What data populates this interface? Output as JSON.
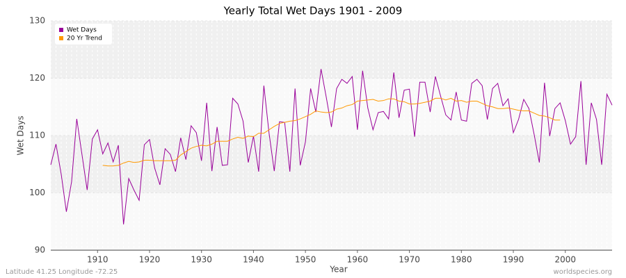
{
  "chart_data": {
    "type": "line",
    "title": "Yearly Total Wet Days 1901 - 2009",
    "x_label": "Year",
    "y_label": "Wet Days",
    "footer_left": "Latitude 41.25 Longitude -72.25",
    "footer_right": "worldspecies.org",
    "x": [
      1901,
      1902,
      1903,
      1904,
      1905,
      1906,
      1907,
      1908,
      1909,
      1910,
      1911,
      1912,
      1913,
      1914,
      1915,
      1916,
      1917,
      1918,
      1919,
      1920,
      1921,
      1922,
      1923,
      1924,
      1925,
      1926,
      1927,
      1928,
      1929,
      1930,
      1931,
      1932,
      1933,
      1934,
      1935,
      1936,
      1937,
      1938,
      1939,
      1940,
      1941,
      1942,
      1943,
      1944,
      1945,
      1946,
      1947,
      1948,
      1949,
      1950,
      1951,
      1952,
      1953,
      1954,
      1955,
      1956,
      1957,
      1958,
      1959,
      1960,
      1961,
      1962,
      1963,
      1964,
      1965,
      1966,
      1967,
      1968,
      1969,
      1970,
      1971,
      1972,
      1973,
      1974,
      1975,
      1976,
      1977,
      1978,
      1979,
      1980,
      1981,
      1982,
      1983,
      1984,
      1985,
      1986,
      1987,
      1988,
      1989,
      1990,
      1991,
      1992,
      1993,
      1994,
      1995,
      1996,
      1997,
      1998,
      1999,
      2000,
      2001,
      2002,
      2003,
      2004,
      2005,
      2006,
      2007,
      2008,
      2009
    ],
    "series": [
      {
        "name": "Wet Days",
        "color": "#990099",
        "values": [
          104.9,
          108.5,
          103.3,
          96.7,
          101.9,
          112.9,
          106.7,
          100.5,
          109.4,
          111.0,
          106.8,
          108.7,
          105.4,
          108.3,
          94.5,
          102.5,
          100.5,
          98.7,
          108.4,
          109.3,
          104.3,
          101.4,
          107.7,
          106.7,
          103.7,
          109.6,
          105.8,
          111.7,
          110.5,
          105.6,
          115.7,
          103.8,
          111.5,
          104.8,
          104.9,
          116.5,
          115.5,
          112.5,
          105.3,
          109.9,
          103.7,
          118.7,
          110.4,
          103.8,
          112.4,
          112.3,
          103.7,
          118.2,
          104.8,
          108.9,
          118.2,
          114.1,
          121.6,
          116.7,
          111.5,
          118.2,
          119.8,
          119.1,
          120.3,
          111.0,
          121.3,
          114.8,
          111.0,
          114.0,
          114.2,
          112.9,
          121.0,
          113.1,
          117.9,
          118.1,
          109.8,
          119.3,
          119.3,
          114.1,
          120.3,
          116.9,
          113.6,
          112.7,
          117.6,
          112.7,
          112.5,
          119.1,
          119.8,
          118.7,
          112.8,
          118.2,
          119.1,
          115.2,
          116.4,
          110.5,
          112.8,
          116.3,
          114.7,
          110.2,
          105.3,
          119.2,
          109.9,
          114.7,
          115.7,
          112.6,
          108.5,
          109.8,
          119.5,
          104.9,
          115.7,
          112.8,
          104.9,
          117.2,
          115.3
        ]
      },
      {
        "name": "20 Yr Trend",
        "color": "#ff9900",
        "values": [
          null,
          null,
          null,
          null,
          null,
          null,
          null,
          null,
          null,
          null,
          104.8,
          104.7,
          104.7,
          104.8,
          105.2,
          105.5,
          105.3,
          105.4,
          105.7,
          105.7,
          105.6,
          105.6,
          105.6,
          105.6,
          105.7,
          106.6,
          107.2,
          107.8,
          108.1,
          108.3,
          108.2,
          108.5,
          109.0,
          109.0,
          109.0,
          109.4,
          109.7,
          109.5,
          109.9,
          109.8,
          110.4,
          110.4,
          111.0,
          111.6,
          112.1,
          112.3,
          112.5,
          112.6,
          112.9,
          113.3,
          113.7,
          114.3,
          114.1,
          114.0,
          114.1,
          114.6,
          114.8,
          115.2,
          115.4,
          116.0,
          116.1,
          116.2,
          116.3,
          116.0,
          116.1,
          116.4,
          116.4,
          116.0,
          115.9,
          115.5,
          115.5,
          115.6,
          115.8,
          116.0,
          116.5,
          116.5,
          116.2,
          116.5,
          116.0,
          116.1,
          115.8,
          116.0,
          116.0,
          115.6,
          115.2,
          115.0,
          114.7,
          114.7,
          114.8,
          114.6,
          114.4,
          114.3,
          114.3,
          113.9,
          113.5,
          113.4,
          113.1,
          112.7,
          112.7,
          null,
          null,
          null,
          null,
          null,
          null,
          null,
          null,
          null,
          null
        ]
      }
    ],
    "xlim": [
      1901,
      2009
    ],
    "xticks": [
      1910,
      1920,
      1930,
      1940,
      1950,
      1960,
      1970,
      1980,
      1990,
      2000
    ],
    "ylim": [
      90,
      130
    ],
    "yticks": [
      90,
      100,
      110,
      120,
      130
    ],
    "grid": true,
    "legend": "top-left"
  }
}
